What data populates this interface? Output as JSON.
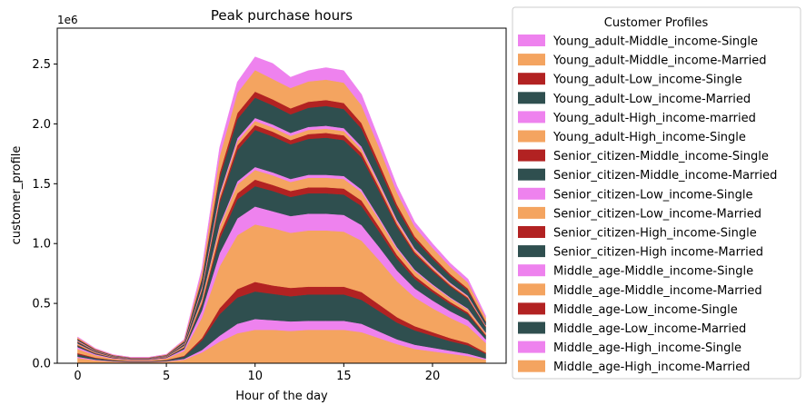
{
  "chart_data": {
    "type": "area",
    "title": "Peak purchase hours",
    "xlabel": "Hour of the day",
    "ylabel": "customer_profile",
    "y_offset_label": "1e6",
    "xlim": [
      -1.15,
      24.15
    ],
    "ylim": [
      0,
      2800000
    ],
    "x_ticks": [
      0,
      5,
      10,
      15,
      20
    ],
    "x_tick_labels": [
      "0",
      "5",
      "10",
      "15",
      "20"
    ],
    "y_ticks": [
      0,
      500000,
      1000000,
      1500000,
      2000000,
      2500000
    ],
    "y_tick_labels": [
      "0.0",
      "0.5",
      "1.0",
      "1.5",
      "2.0",
      "2.5"
    ],
    "grid": false,
    "legend_title": "Customer Profiles",
    "legend_position": "outside-right",
    "x": [
      0,
      1,
      2,
      3,
      4,
      5,
      6,
      7,
      8,
      9,
      10,
      11,
      12,
      13,
      14,
      15,
      16,
      17,
      18,
      19,
      20,
      21,
      22,
      23
    ],
    "series": [
      {
        "name": "Middle_age-High_income-Married",
        "color": "#f4a460",
        "values": [
          45000,
          25000,
          15000,
          10000,
          10000,
          15000,
          30000,
          90000,
          180000,
          250000,
          280000,
          280000,
          270000,
          280000,
          280000,
          280000,
          260000,
          210000,
          160000,
          120000,
          100000,
          80000,
          60000,
          30000
        ]
      },
      {
        "name": "Middle_age-High_income-Single",
        "color": "#ee82ee",
        "values": [
          10000,
          5000,
          3000,
          2000,
          2000,
          3000,
          7000,
          20000,
          50000,
          80000,
          90000,
          80000,
          80000,
          75000,
          75000,
          75000,
          70000,
          55000,
          40000,
          35000,
          30000,
          25000,
          20000,
          10000
        ]
      },
      {
        "name": "Middle_age-Low_income-Married",
        "color": "#2f4f4f",
        "values": [
          20000,
          12000,
          7000,
          5000,
          5000,
          7000,
          20000,
          80000,
          180000,
          220000,
          230000,
          220000,
          210000,
          220000,
          220000,
          220000,
          200000,
          170000,
          140000,
          120000,
          100000,
          80000,
          70000,
          40000
        ]
      },
      {
        "name": "Middle_age-Low_income-Single",
        "color": "#b22222",
        "values": [
          10000,
          5000,
          3000,
          2000,
          2000,
          3000,
          6000,
          20000,
          50000,
          70000,
          80000,
          70000,
          70000,
          65000,
          65000,
          65000,
          65000,
          55000,
          45000,
          35000,
          30000,
          25000,
          20000,
          10000
        ]
      },
      {
        "name": "Middle_age-Middle_income-Married",
        "color": "#f4a460",
        "values": [
          35000,
          20000,
          10000,
          8000,
          8000,
          12000,
          40000,
          170000,
          350000,
          450000,
          480000,
          480000,
          460000,
          470000,
          470000,
          460000,
          430000,
          370000,
          300000,
          240000,
          200000,
          170000,
          140000,
          80000
        ]
      },
      {
        "name": "Middle_age-Middle_income-Single",
        "color": "#ee82ee",
        "values": [
          15000,
          8000,
          5000,
          3000,
          3000,
          5000,
          15000,
          60000,
          110000,
          140000,
          150000,
          140000,
          140000,
          140000,
          140000,
          140000,
          130000,
          110000,
          90000,
          75000,
          65000,
          55000,
          50000,
          30000
        ]
      },
      {
        "name": "Senior_citizen-High income-Married",
        "color": "#2f4f4f",
        "values": [
          12000,
          7000,
          4000,
          3000,
          3000,
          4000,
          12000,
          50000,
          120000,
          160000,
          170000,
          170000,
          160000,
          170000,
          170000,
          170000,
          160000,
          130000,
          100000,
          80000,
          70000,
          60000,
          50000,
          30000
        ]
      },
      {
        "name": "Senior_citizen-High_income-Single",
        "color": "#b22222",
        "values": [
          5000,
          3000,
          2000,
          1000,
          1000,
          2000,
          4000,
          15000,
          40000,
          50000,
          55000,
          50000,
          50000,
          50000,
          50000,
          50000,
          45000,
          38000,
          30000,
          25000,
          20000,
          18000,
          15000,
          8000
        ]
      },
      {
        "name": "Senior_citizen-Low_income-Married",
        "color": "#f4a460",
        "values": [
          10000,
          6000,
          3000,
          2000,
          2000,
          3000,
          10000,
          30000,
          60000,
          75000,
          80000,
          80000,
          75000,
          80000,
          80000,
          80000,
          70000,
          60000,
          50000,
          40000,
          35000,
          30000,
          25000,
          15000
        ]
      },
      {
        "name": "Senior_citizen-Low_income-Single",
        "color": "#ee82ee",
        "values": [
          3000,
          2000,
          1000,
          1000,
          1000,
          1000,
          2000,
          8000,
          20000,
          25000,
          25000,
          25000,
          25000,
          25000,
          25000,
          25000,
          22000,
          18000,
          15000,
          12000,
          10000,
          8000,
          7000,
          4000
        ]
      },
      {
        "name": "Senior_citizen-Middle_income-Married",
        "color": "#2f4f4f",
        "values": [
          12000,
          7000,
          4000,
          3000,
          3000,
          4000,
          12000,
          60000,
          180000,
          260000,
          310000,
          300000,
          290000,
          300000,
          310000,
          300000,
          270000,
          220000,
          170000,
          130000,
          110000,
          90000,
          80000,
          45000
        ]
      },
      {
        "name": "Senior_citizen-Middle_income-Single",
        "color": "#b22222",
        "values": [
          4000,
          2000,
          1000,
          1000,
          1000,
          1000,
          3000,
          12000,
          30000,
          40000,
          40000,
          40000,
          35000,
          40000,
          40000,
          40000,
          35000,
          30000,
          22000,
          18000,
          15000,
          12000,
          10000,
          6000
        ]
      },
      {
        "name": "Young_adult-High_income-Single",
        "color": "#f4a460",
        "values": [
          5000,
          3000,
          2000,
          1000,
          1000,
          2000,
          4000,
          15000,
          30000,
          35000,
          35000,
          35000,
          35000,
          35000,
          35000,
          35000,
          32000,
          27000,
          22000,
          18000,
          15000,
          12000,
          10000,
          6000
        ]
      },
      {
        "name": "Young_adult-High_income-married",
        "color": "#ee82ee",
        "values": [
          4000,
          2000,
          1000,
          1000,
          1000,
          1000,
          3000,
          10000,
          20000,
          25000,
          25000,
          25000,
          25000,
          25000,
          25000,
          25000,
          22000,
          18000,
          15000,
          12000,
          10000,
          8000,
          7000,
          4000
        ]
      },
      {
        "name": "Young_adult-Low_income-Married",
        "color": "#2f4f4f",
        "values": [
          10000,
          6000,
          4000,
          3000,
          3000,
          4000,
          12000,
          55000,
          130000,
          160000,
          170000,
          160000,
          155000,
          160000,
          165000,
          160000,
          150000,
          120000,
          95000,
          75000,
          65000,
          55000,
          45000,
          25000
        ]
      },
      {
        "name": "Young_adult-Low_income-Single",
        "color": "#b22222",
        "values": [
          5000,
          3000,
          2000,
          1000,
          1000,
          2000,
          4000,
          15000,
          40000,
          50000,
          50000,
          50000,
          50000,
          50000,
          50000,
          50000,
          45000,
          40000,
          32000,
          25000,
          20000,
          18000,
          15000,
          8000
        ]
      },
      {
        "name": "Young_adult-Middle_income-Married",
        "color": "#f4a460",
        "values": [
          10000,
          5000,
          3000,
          2000,
          2000,
          4000,
          10000,
          50000,
          140000,
          170000,
          180000,
          170000,
          170000,
          170000,
          170000,
          170000,
          150000,
          130000,
          100000,
          80000,
          70000,
          60000,
          50000,
          30000
        ]
      },
      {
        "name": "Young_adult-Middle_income-Single",
        "color": "#ee82ee",
        "values": [
          5000,
          3000,
          2000,
          1000,
          1000,
          2000,
          5000,
          30000,
          70000,
          90000,
          110000,
          130000,
          90000,
          90000,
          100000,
          100000,
          90000,
          65000,
          55000,
          40000,
          35000,
          30000,
          30000,
          15000
        ]
      }
    ]
  }
}
